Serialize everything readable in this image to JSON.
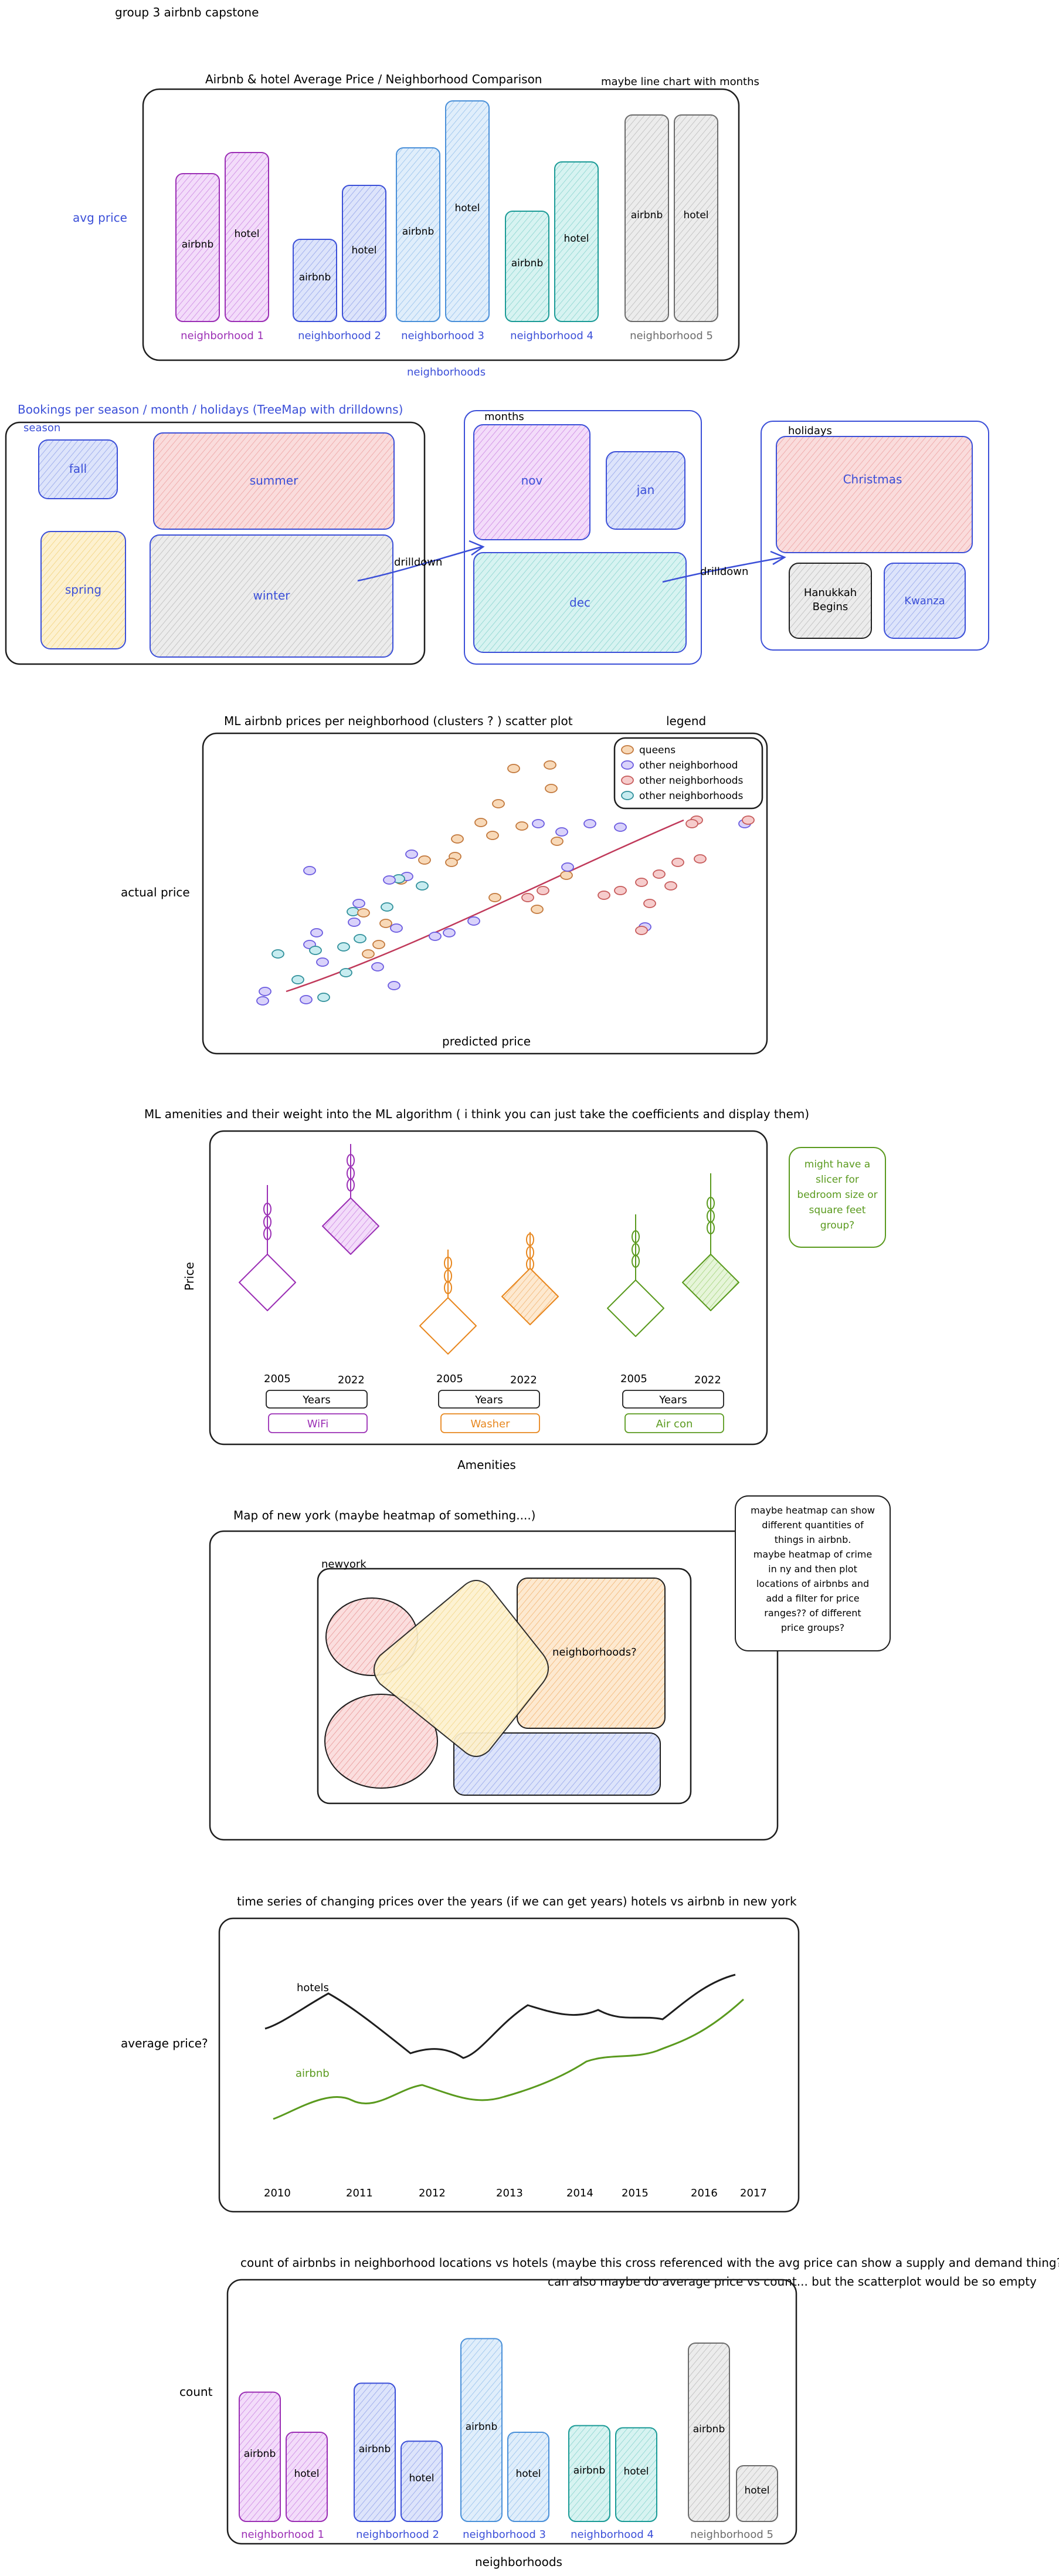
{
  "page_title": "group 3 airbnb capstone",
  "colors": {
    "ink": "#1e1e1e",
    "purple": "#9b2fb5",
    "purple_fill": "#e9c2f5",
    "blue": "#3b4fd8",
    "blue_fill": "#c9d4f7",
    "sky": "#4a90d9",
    "sky_fill": "#cfe3f7",
    "teal": "#1b9b97",
    "teal_fill": "#c3ecea",
    "gray": "#6b6b6b",
    "gray_fill": "#dcdcdc",
    "red": "#d9534f",
    "red_fill": "#f7c6c6",
    "yellow_fill": "#fbe7b0",
    "orange": "#e8871e",
    "orange_fill": "#fde1bf",
    "green": "#5a9a1e",
    "green_fill": "#d8efc4"
  },
  "section1": {
    "title": "Airbnb & hotel Average Price / Neighborhood Comparison",
    "note": "maybe line chart with months",
    "ylabel": "avg price",
    "xlabel": "neighborhoods",
    "bar_airbnb": "airbnb",
    "bar_hotel": "hotel",
    "groups": [
      {
        "name": "neighborhood 1",
        "airbnb": 63,
        "hotel": 72
      },
      {
        "name": "neighborhood 2",
        "airbnb": 35,
        "hotel": 58
      },
      {
        "name": "neighborhood 3",
        "airbnb": 74,
        "hotel": 94
      },
      {
        "name": "neighborhood 4",
        "airbnb": 47,
        "hotel": 68
      },
      {
        "name": "neighborhood 5",
        "airbnb": 88,
        "hotel": 88
      }
    ]
  },
  "section2": {
    "title": "Bookings per season / month / holidays (TreeMap with drilldowns)",
    "panel1_label": "season",
    "panel1": {
      "fall": "fall",
      "summer": "summer",
      "spring": "spring",
      "winter": "winter"
    },
    "drilldown": "drilldown",
    "panel2_label": "months",
    "panel2": {
      "nov": "nov",
      "jan": "jan",
      "dec": "dec"
    },
    "panel3_label": "holidays",
    "panel3": {
      "christmas": "Christmas",
      "hanukkah_1": "Hanukkah",
      "hanukkah_2": "Begins",
      "kwanza": "Kwanza"
    }
  },
  "section3": {
    "title": "ML airbnb prices per neighborhood (clusters ? ) scatter plot",
    "legend_title": "legend",
    "legend": [
      "queens",
      "other neighborhood",
      "other neighborhoods",
      "other neighborhoods"
    ],
    "ylabel": "actual price",
    "xlabel": "predicted price"
  },
  "section4": {
    "title": "ML amenities and their weight into the ML algorithm ( i think you can just take the coefficients and display them)",
    "ylabel": "Price",
    "xlabel": "Amenities",
    "note_lines": [
      "might have a",
      "slicer for",
      "bedroom size or",
      "square feet",
      "group?"
    ],
    "year_a": "2005",
    "year_b": "2022",
    "years_button": "Years",
    "amenities": [
      "WiFi",
      "Washer",
      "Air con"
    ]
  },
  "section5": {
    "title": "Map of new york (maybe heatmap of something....)",
    "inner_label": "newyork",
    "region_label": "neighborhoods?",
    "note_lines": [
      "maybe heatmap can show",
      "different quantities of",
      "things in airbnb.",
      "maybe heatmap of crime",
      "in ny and then plot",
      "locations of airbnbs and",
      "add a filter for price",
      "ranges?? of different",
      "price groups?"
    ]
  },
  "section6": {
    "title": "time series of changing prices over the years (if we can get years) hotels vs airbnb in new york",
    "ylabel": "average price?",
    "series_hotels": "hotels",
    "series_airbnb": "airbnb",
    "years": [
      "2010",
      "2011",
      "2012",
      "2013",
      "2014",
      "2015",
      "2016",
      "2017"
    ]
  },
  "section7": {
    "title": "count of airbnbs in neighborhood locations vs hotels (maybe this cross referenced with the avg price can show a supply and demand thing?)",
    "note": "can also maybe do average price vs count... but the scatterplot would be so empty",
    "ylabel": "count",
    "xlabel": "neighborhoods",
    "bar_airbnb": "airbnb",
    "bar_hotel": "hotel",
    "groups": [
      {
        "name": "neighborhood 1",
        "airbnb": 58,
        "hotel": 40
      },
      {
        "name": "neighborhood 2",
        "airbnb": 62,
        "hotel": 36
      },
      {
        "name": "neighborhood 3",
        "airbnb": 82,
        "hotel": 40
      },
      {
        "name": "neighborhood 4",
        "airbnb": 43,
        "hotel": 42
      },
      {
        "name": "neighborhood 5",
        "airbnb": 80,
        "hotel": 25
      }
    ]
  }
}
